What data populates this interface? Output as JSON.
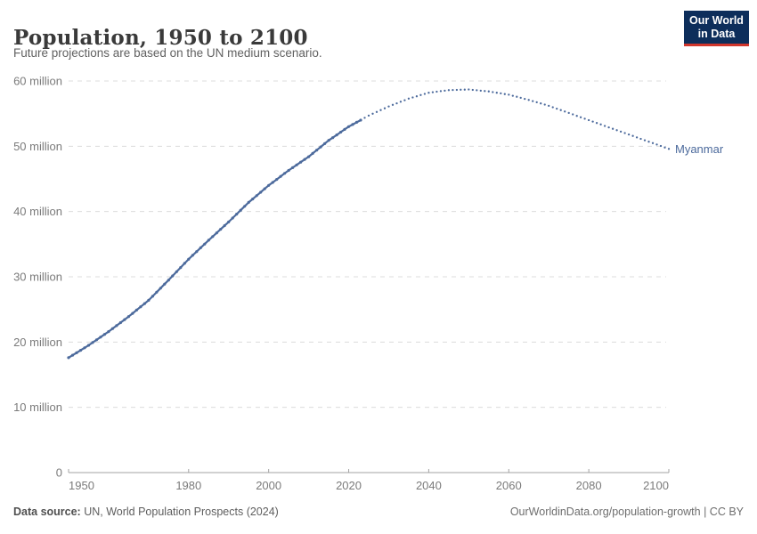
{
  "header": {
    "title": "Population, 1950 to 2100",
    "subtitle": "Future projections are based on the UN medium scenario.",
    "logo": {
      "line1": "Our World",
      "line2": "in Data",
      "bg_color": "#0d2e5b",
      "accent_color": "#d0362c"
    }
  },
  "chart_data": {
    "type": "line",
    "title": "Population, 1950 to 2100",
    "subtitle": "Future projections are based on the UN medium scenario.",
    "xlabel": "",
    "ylabel": "",
    "unit": "million",
    "xlim": [
      1950,
      2100
    ],
    "ylim": [
      0,
      60
    ],
    "grid": "horizontal-dashed",
    "legend_position": "end-of-line-label",
    "x_ticks": [
      1950,
      1980,
      2000,
      2020,
      2040,
      2060,
      2080,
      2100
    ],
    "y_ticks": [
      {
        "value": 0,
        "label": "0"
      },
      {
        "value": 10,
        "label": "10 million"
      },
      {
        "value": 20,
        "label": "20 million"
      },
      {
        "value": 30,
        "label": "30 million"
      },
      {
        "value": 40,
        "label": "40 million"
      },
      {
        "value": 50,
        "label": "50 million"
      },
      {
        "value": 60,
        "label": "60 million"
      }
    ],
    "series": [
      {
        "name": "Myanmar",
        "color": "#4C6A9C",
        "projection_start": 2024,
        "projection_style": "dotted",
        "points_unit": "million people",
        "points": [
          [
            1950,
            17.6
          ],
          [
            1955,
            19.5
          ],
          [
            1960,
            21.6
          ],
          [
            1965,
            23.9
          ],
          [
            1970,
            26.4
          ],
          [
            1975,
            29.5
          ],
          [
            1980,
            32.7
          ],
          [
            1985,
            35.6
          ],
          [
            1990,
            38.4
          ],
          [
            1995,
            41.4
          ],
          [
            2000,
            44.0
          ],
          [
            2005,
            46.3
          ],
          [
            2010,
            48.4
          ],
          [
            2015,
            50.9
          ],
          [
            2020,
            53.0
          ],
          [
            2023,
            54.0
          ],
          [
            2025,
            54.7
          ],
          [
            2030,
            56.1
          ],
          [
            2035,
            57.3
          ],
          [
            2040,
            58.2
          ],
          [
            2045,
            58.6
          ],
          [
            2050,
            58.7
          ],
          [
            2055,
            58.4
          ],
          [
            2060,
            57.9
          ],
          [
            2065,
            57.1
          ],
          [
            2070,
            56.2
          ],
          [
            2075,
            55.1
          ],
          [
            2080,
            54.0
          ],
          [
            2085,
            52.9
          ],
          [
            2090,
            51.8
          ],
          [
            2095,
            50.7
          ],
          [
            2100,
            49.6
          ]
        ]
      }
    ],
    "colors": {
      "gridline": "#dcdcdc",
      "axis": "#a3a3a3",
      "tick_label": "#7b7b7b",
      "series": "#4C6A9C"
    }
  },
  "footer": {
    "source_label": "Data source:",
    "source_text": " UN, World Population Prospects (2024)",
    "credit": "OurWorldinData.org/population-growth | CC BY"
  }
}
